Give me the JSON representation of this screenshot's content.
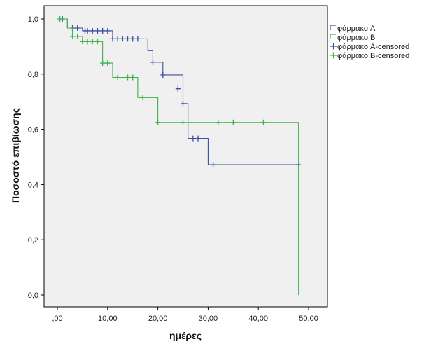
{
  "chart_data": {
    "type": "line",
    "subtype": "kaplan-meier-step",
    "xlabel": "ημέρες",
    "ylabel": "Ποσοστό επιβίωσης",
    "xlim": [
      0,
      50
    ],
    "ylim": [
      0,
      1
    ],
    "x_ticks": [
      ",00",
      "10,00",
      "20,00",
      "30,00",
      "40,00",
      "50,00"
    ],
    "y_ticks": [
      "0,0",
      "0,2",
      "0,4",
      "0,6",
      "0,8",
      "1,0"
    ],
    "x_tick_values": [
      0,
      10,
      20,
      30,
      40,
      50
    ],
    "y_tick_values": [
      0,
      0.2,
      0.4,
      0.6,
      0.8,
      1.0
    ],
    "background_color": "#f0f0f0",
    "grid": false,
    "legend_position": "right",
    "legend": [
      {
        "label": "φάρμακο A",
        "kind": "step",
        "color": "#3a4fa3"
      },
      {
        "label": "φάρμακο B",
        "kind": "step",
        "color": "#3cb44b"
      },
      {
        "label": "φάρμακο A-censored",
        "kind": "censor",
        "color": "#3a4fa3"
      },
      {
        "label": "φάρμακο B-censored",
        "kind": "censor",
        "color": "#3cb44b"
      }
    ],
    "series": [
      {
        "name": "φάρμακο A",
        "color": "#3a4fa3",
        "steps": [
          [
            0,
            1.0
          ],
          [
            2,
            0.967
          ],
          [
            5,
            0.957
          ],
          [
            11,
            0.928
          ],
          [
            18,
            0.885
          ],
          [
            19,
            0.843
          ],
          [
            21,
            0.797
          ],
          [
            25,
            0.693
          ],
          [
            26,
            0.567
          ],
          [
            30,
            0.472
          ],
          [
            48,
            0.472
          ]
        ],
        "censored": [
          [
            1,
            1.0
          ],
          [
            3,
            0.967
          ],
          [
            4,
            0.967
          ],
          [
            5.5,
            0.957
          ],
          [
            6,
            0.957
          ],
          [
            7,
            0.957
          ],
          [
            8,
            0.957
          ],
          [
            9,
            0.957
          ],
          [
            10,
            0.957
          ],
          [
            11,
            0.928
          ],
          [
            12,
            0.928
          ],
          [
            13,
            0.928
          ],
          [
            14,
            0.928
          ],
          [
            15,
            0.928
          ],
          [
            16,
            0.928
          ],
          [
            19,
            0.843
          ],
          [
            21,
            0.797
          ],
          [
            24,
            0.747
          ],
          [
            25,
            0.693
          ],
          [
            27,
            0.567
          ],
          [
            28,
            0.567
          ],
          [
            31,
            0.472
          ],
          [
            48,
            0.472
          ]
        ]
      },
      {
        "name": "φάρμακο B",
        "color": "#3cb44b",
        "steps": [
          [
            0,
            1.0
          ],
          [
            2,
            0.967
          ],
          [
            3,
            0.937
          ],
          [
            5,
            0.918
          ],
          [
            9,
            0.84
          ],
          [
            11,
            0.788
          ],
          [
            16,
            0.715
          ],
          [
            20,
            0.625
          ],
          [
            48,
            0.0
          ]
        ],
        "censored": [
          [
            0.5,
            1.0
          ],
          [
            3,
            0.937
          ],
          [
            4,
            0.937
          ],
          [
            5,
            0.918
          ],
          [
            6,
            0.918
          ],
          [
            7,
            0.918
          ],
          [
            8,
            0.918
          ],
          [
            9,
            0.84
          ],
          [
            10,
            0.84
          ],
          [
            12,
            0.788
          ],
          [
            14,
            0.788
          ],
          [
            15,
            0.788
          ],
          [
            17,
            0.715
          ],
          [
            20,
            0.625
          ],
          [
            25,
            0.625
          ],
          [
            32,
            0.625
          ],
          [
            35,
            0.625
          ],
          [
            41,
            0.625
          ]
        ]
      }
    ]
  }
}
